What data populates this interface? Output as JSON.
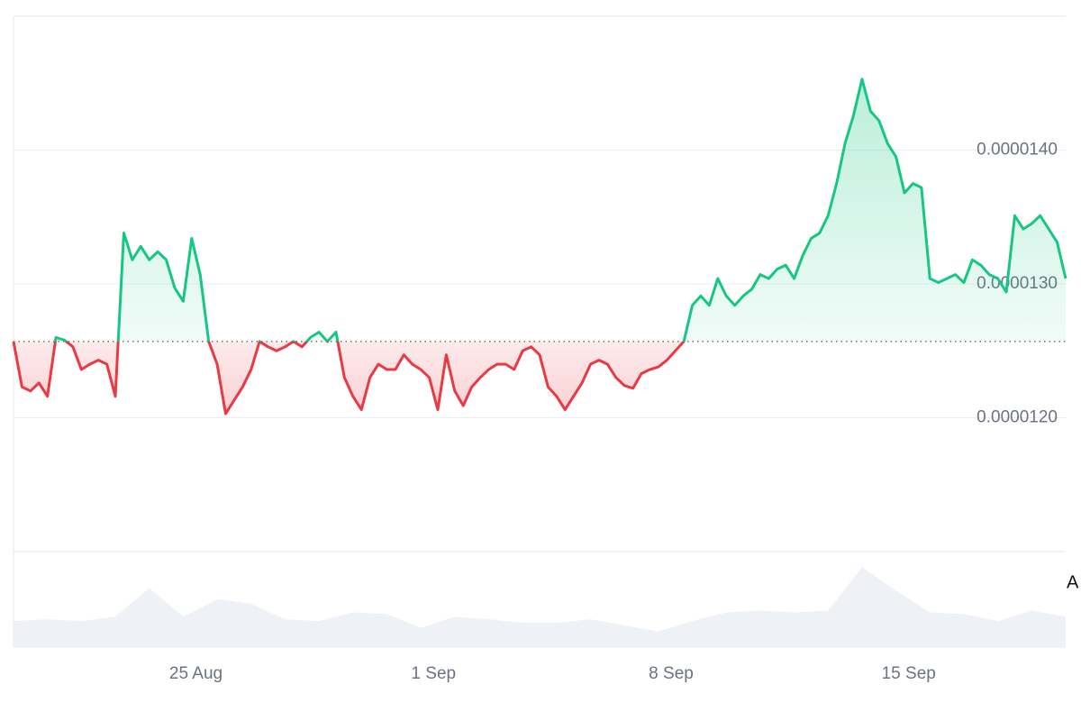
{
  "chart_data": {
    "type": "line",
    "series": [
      {
        "name": "price",
        "color_up": "#16c784",
        "color_down": "#ea3943",
        "values": [
          1.257e-05,
          1.223e-05,
          1.22e-05,
          1.226e-05,
          1.216e-05,
          1.26e-05,
          1.258e-05,
          1.253e-05,
          1.236e-05,
          1.24e-05,
          1.243e-05,
          1.24e-05,
          1.216e-05,
          1.338e-05,
          1.318e-05,
          1.328e-05,
          1.318e-05,
          1.324e-05,
          1.318e-05,
          1.297e-05,
          1.287e-05,
          1.334e-05,
          1.307e-05,
          1.257e-05,
          1.24e-05,
          1.203e-05,
          1.213e-05,
          1.223e-05,
          1.236e-05,
          1.257e-05,
          1.253e-05,
          1.25e-05,
          1.253e-05,
          1.257e-05,
          1.253e-05,
          1.26e-05,
          1.264e-05,
          1.257e-05,
          1.264e-05,
          1.23e-05,
          1.216e-05,
          1.206e-05,
          1.23e-05,
          1.24e-05,
          1.236e-05,
          1.236e-05,
          1.247e-05,
          1.24e-05,
          1.236e-05,
          1.23e-05,
          1.206e-05,
          1.247e-05,
          1.22e-05,
          1.209e-05,
          1.223e-05,
          1.23e-05,
          1.236e-05,
          1.24e-05,
          1.24e-05,
          1.236e-05,
          1.25e-05,
          1.253e-05,
          1.247e-05,
          1.223e-05,
          1.216e-05,
          1.206e-05,
          1.216e-05,
          1.226e-05,
          1.24e-05,
          1.243e-05,
          1.24e-05,
          1.23e-05,
          1.224e-05,
          1.222e-05,
          1.233e-05,
          1.236e-05,
          1.238e-05,
          1.243e-05,
          1.25e-05,
          1.257e-05,
          1.284e-05,
          1.291e-05,
          1.284e-05,
          1.304e-05,
          1.291e-05,
          1.284e-05,
          1.291e-05,
          1.296e-05,
          1.307e-05,
          1.304e-05,
          1.311e-05,
          1.314e-05,
          1.304e-05,
          1.321e-05,
          1.334e-05,
          1.338e-05,
          1.351e-05,
          1.375e-05,
          1.405e-05,
          1.426e-05,
          1.453e-05,
          1.429e-05,
          1.422e-05,
          1.405e-05,
          1.395e-05,
          1.368e-05,
          1.375e-05,
          1.372e-05,
          1.304e-05,
          1.301e-05,
          1.304e-05,
          1.307e-05,
          1.301e-05,
          1.318e-05,
          1.314e-05,
          1.307e-05,
          1.304e-05,
          1.294e-05,
          1.351e-05,
          1.341e-05,
          1.345e-05,
          1.351e-05,
          1.341e-05,
          1.331e-05,
          1.304e-05
        ]
      }
    ],
    "baseline": 1.257e-05,
    "volume": {
      "color": "#eef1f5",
      "x": [
        0,
        4,
        8,
        12,
        16,
        20,
        24,
        28,
        32,
        36,
        40,
        44,
        48,
        52,
        56,
        60,
        64,
        68,
        72,
        76,
        80,
        84,
        88,
        92,
        96,
        100,
        104,
        108,
        112,
        116,
        120,
        124
      ],
      "values": [
        30,
        32,
        30,
        35,
        68,
        35,
        55,
        50,
        32,
        30,
        40,
        38,
        22,
        35,
        32,
        28,
        28,
        32,
        25,
        18,
        30,
        40,
        42,
        40,
        42,
        92,
        65,
        40,
        38,
        30,
        42,
        35
      ],
      "ylim": [
        0,
        110
      ]
    },
    "xlim": [
      0,
      124
    ],
    "xticks": [
      {
        "value": 21.5,
        "label": "25 Aug"
      },
      {
        "value": 49.5,
        "label": "1 Sep"
      },
      {
        "value": 77.5,
        "label": "8 Sep"
      },
      {
        "value": 105.5,
        "label": "15 Sep"
      }
    ],
    "ylim": [
      1.1e-05,
      1.5e-05
    ],
    "yticks": [
      {
        "value": 1.2e-05,
        "label": "0.0000120"
      },
      {
        "value": 1.3e-05,
        "label": "0.0000130"
      },
      {
        "value": 1.4e-05,
        "label": "0.0000140"
      }
    ],
    "grid": true,
    "annotation": "A"
  }
}
